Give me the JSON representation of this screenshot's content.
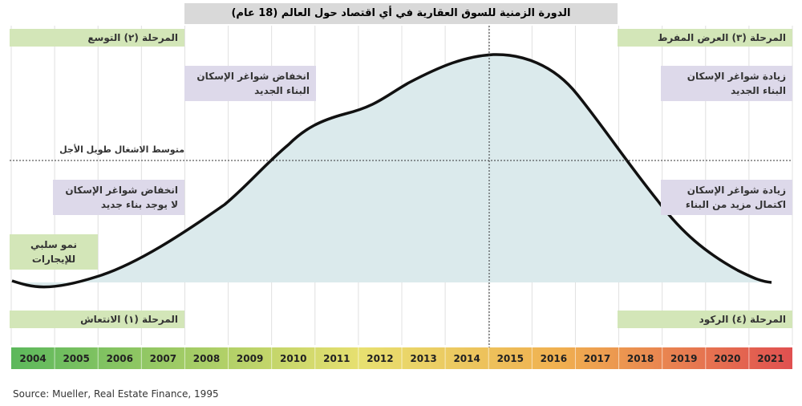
{
  "title": "الدورة الزمنية للسوق العقارية في أي اقتصاد حول العالم (18 عام)",
  "phases": {
    "expansion": "المرحلة (٢) التوسع",
    "oversupply": "المرحلة (٣) العرض المفرط",
    "recovery": "المرحلة (١) الانتعاش",
    "recession": "المرحلة (٤) الركود"
  },
  "notes": {
    "falling_vacancy_new_construction": [
      "انخفاض شواغر الإسكان",
      "البناء الجديد"
    ],
    "rising_vacancy_new_construction": [
      "زيادة شواغر الإسكان",
      "البناء الجديد"
    ],
    "falling_vacancy_no_construction": [
      "انخفاض شواغر الإسكان",
      "لا يوجد بناء جديد"
    ],
    "rising_vacancy_more_completions": [
      "زيادة شواغر الإسكان",
      "اكتمال مزيد من البناء"
    ],
    "negative_rent_growth": [
      "نمو سلبي",
      "للإيجارات"
    ]
  },
  "average_line_label": "متوسط الاشغال طويل الأجل",
  "years": [
    "2004",
    "2005",
    "2006",
    "2007",
    "2008",
    "2009",
    "2010",
    "2011",
    "2012",
    "2013",
    "2014",
    "2015",
    "2016",
    "2017",
    "2018",
    "2019",
    "2020",
    "2021"
  ],
  "source": "Source: Mueller, Real Estate Finance, 1995"
}
